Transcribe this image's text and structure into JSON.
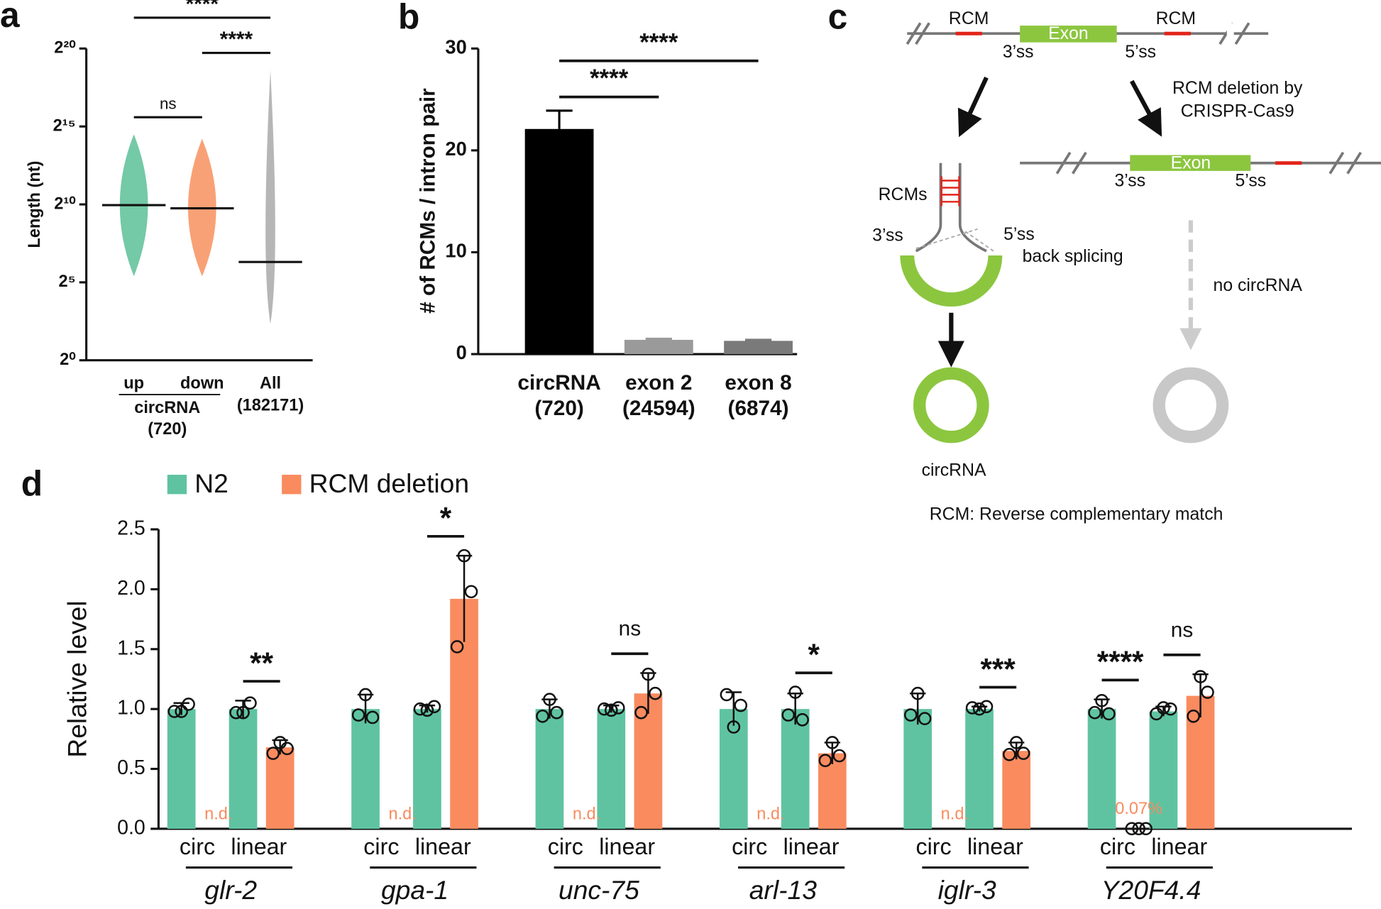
{
  "chart_data": [
    {
      "type": "swarm",
      "panel": "a",
      "ylabel": "Length (nt)",
      "yscale": "log2",
      "ylim": [
        1,
        1048576
      ],
      "yticks": [
        {
          "value": 1,
          "label": "2⁰"
        },
        {
          "value": 32,
          "label": "2⁵"
        },
        {
          "value": 1024,
          "label": "2¹⁰"
        },
        {
          "value": 32768,
          "label": "2¹⁵"
        },
        {
          "value": 1048576,
          "label": "2²⁰"
        }
      ],
      "categories": [
        "up",
        "down",
        "All"
      ],
      "sublabels": [
        null,
        null,
        "(182171)"
      ],
      "group_label": [
        "circRNA",
        "(720)"
      ],
      "colors": [
        "#5cbf98",
        "#f8915e",
        "#a9a9a9"
      ],
      "values": [
        990,
        860,
        79
      ],
      "min": [
        42,
        42,
        5
      ],
      "max": [
        23000,
        19000,
        400000
      ],
      "significance": [
        {
          "from": 0,
          "to": 2,
          "label": "****"
        },
        {
          "from": 1,
          "to": 2,
          "label": "****"
        },
        {
          "from": 0,
          "to": 1,
          "label": "ns"
        }
      ]
    },
    {
      "type": "bar",
      "panel": "b",
      "ylabel": "# of RCMs / intron pair",
      "categories": [
        "circRNA",
        "exon 2",
        "exon 8"
      ],
      "sublabels": [
        "(720)",
        "(24594)",
        "(6874)"
      ],
      "values": [
        22.1,
        1.4,
        1.3
      ],
      "errors": [
        1.8,
        0.1,
        0.1
      ],
      "colors": [
        "#000000",
        "#9a9a9a",
        "#7a7a7a"
      ],
      "ylim": [
        0,
        30
      ],
      "yticks": [
        0,
        10,
        20,
        30
      ],
      "significance": [
        {
          "from": 0,
          "to": 1,
          "label": "****"
        },
        {
          "from": 0,
          "to": 2,
          "label": "****"
        }
      ]
    },
    {
      "type": "grouped-bar",
      "panel": "d",
      "ylabel": "Relative level",
      "legend": "top-left",
      "categories": [
        "circ",
        "linear",
        "circ",
        "linear",
        "circ",
        "linear",
        "circ",
        "linear",
        "circ",
        "linear",
        "circ",
        "linear"
      ],
      "groups": [
        "glr-2",
        "gpa-1",
        "unc-75",
        "arl-13",
        "iglr-3",
        "Y20F4.4"
      ],
      "ylim": [
        0,
        2.5
      ],
      "yticks": [
        {
          "value": 0,
          "label": "0.0"
        },
        0.5,
        {
          "value": 1,
          "label": "1.0"
        },
        1.5,
        {
          "value": 2,
          "label": "2.0"
        },
        2.5
      ],
      "series": [
        {
          "name": "N2",
          "color": "#5fc3a1",
          "values": [
            1.0,
            1.0,
            1.0,
            1.0,
            1.0,
            1.0,
            1.0,
            1.0,
            1.0,
            1.0,
            1.0,
            0.98
          ],
          "errors": [
            0.05,
            0.07,
            0.12,
            0.03,
            0.08,
            0.03,
            0.14,
            0.13,
            0.13,
            0.02,
            0.08,
            0.04
          ],
          "replicates": [
            [
              0.98,
              1.04,
              0.98
            ],
            [
              0.97,
              1.05,
              0.97
            ],
            [
              0.95,
              0.93,
              1.12
            ],
            [
              1.0,
              1.02,
              0.99
            ],
            [
              0.94,
              0.97,
              1.08
            ],
            [
              1.0,
              1.01,
              0.99
            ],
            [
              1.12,
              1.03,
              0.85
            ],
            [
              0.95,
              0.91,
              1.14
            ],
            [
              0.95,
              0.92,
              1.13
            ],
            [
              1.01,
              1.02,
              1.0
            ],
            [
              0.97,
              0.96,
              1.07
            ],
            [
              0.96,
              1.0,
              1.01
            ]
          ]
        },
        {
          "name": "RCM deletion",
          "color": "#f98b5f",
          "values": [
            null,
            0.68,
            null,
            1.92,
            null,
            1.13,
            null,
            0.63,
            null,
            0.65,
            0.0007,
            1.11
          ],
          "value_labels": [
            "n.d.",
            null,
            "n.d.",
            null,
            "n.d.",
            null,
            "n.d.",
            null,
            "n.d.",
            null,
            "0.07%",
            null
          ],
          "errors": [
            null,
            0.06,
            null,
            0.36,
            null,
            0.17,
            null,
            0.09,
            null,
            0.07,
            0,
            0.18
          ],
          "replicates": [
            null,
            [
              0.63,
              0.67,
              0.72
            ],
            null,
            [
              1.52,
              1.98,
              2.28
            ],
            null,
            [
              0.97,
              1.13,
              1.29
            ],
            null,
            [
              0.57,
              0.61,
              0.72
            ],
            null,
            [
              0.62,
              0.63,
              0.72
            ],
            [
              0.0006,
              0.0008,
              0.0007
            ],
            [
              0.94,
              1.14,
              1.27
            ]
          ]
        }
      ],
      "significance": [
        {
          "category": 1,
          "label": "**"
        },
        {
          "category": 3,
          "label": "*"
        },
        {
          "category": 5,
          "label": "ns"
        },
        {
          "category": 7,
          "label": "*"
        },
        {
          "category": 9,
          "label": "***"
        },
        {
          "category": 10,
          "label": "****"
        },
        {
          "category": 11,
          "label": "ns"
        }
      ]
    }
  ],
  "diagram_c": {
    "panel": "c",
    "wild_type": {
      "rcm_left": "RCM",
      "rcm_right": "RCM",
      "exon": "Exon",
      "ss3": "3’ss",
      "ss5": "5’ss"
    },
    "deletion_label": [
      "RCM deletion by",
      "CRISPR-Cas9"
    ],
    "mutant": {
      "exon": "Exon",
      "ss3": "3’ss",
      "ss5": "5’ss"
    },
    "hairpin": {
      "rcms": "RCMs",
      "ss3": "3’ss",
      "ss5": "5’ss",
      "back_splicing": "back splicing"
    },
    "no_circ": "no circRNA",
    "circ": "circRNA",
    "footnote": "RCM: Reverse complementary match"
  }
}
